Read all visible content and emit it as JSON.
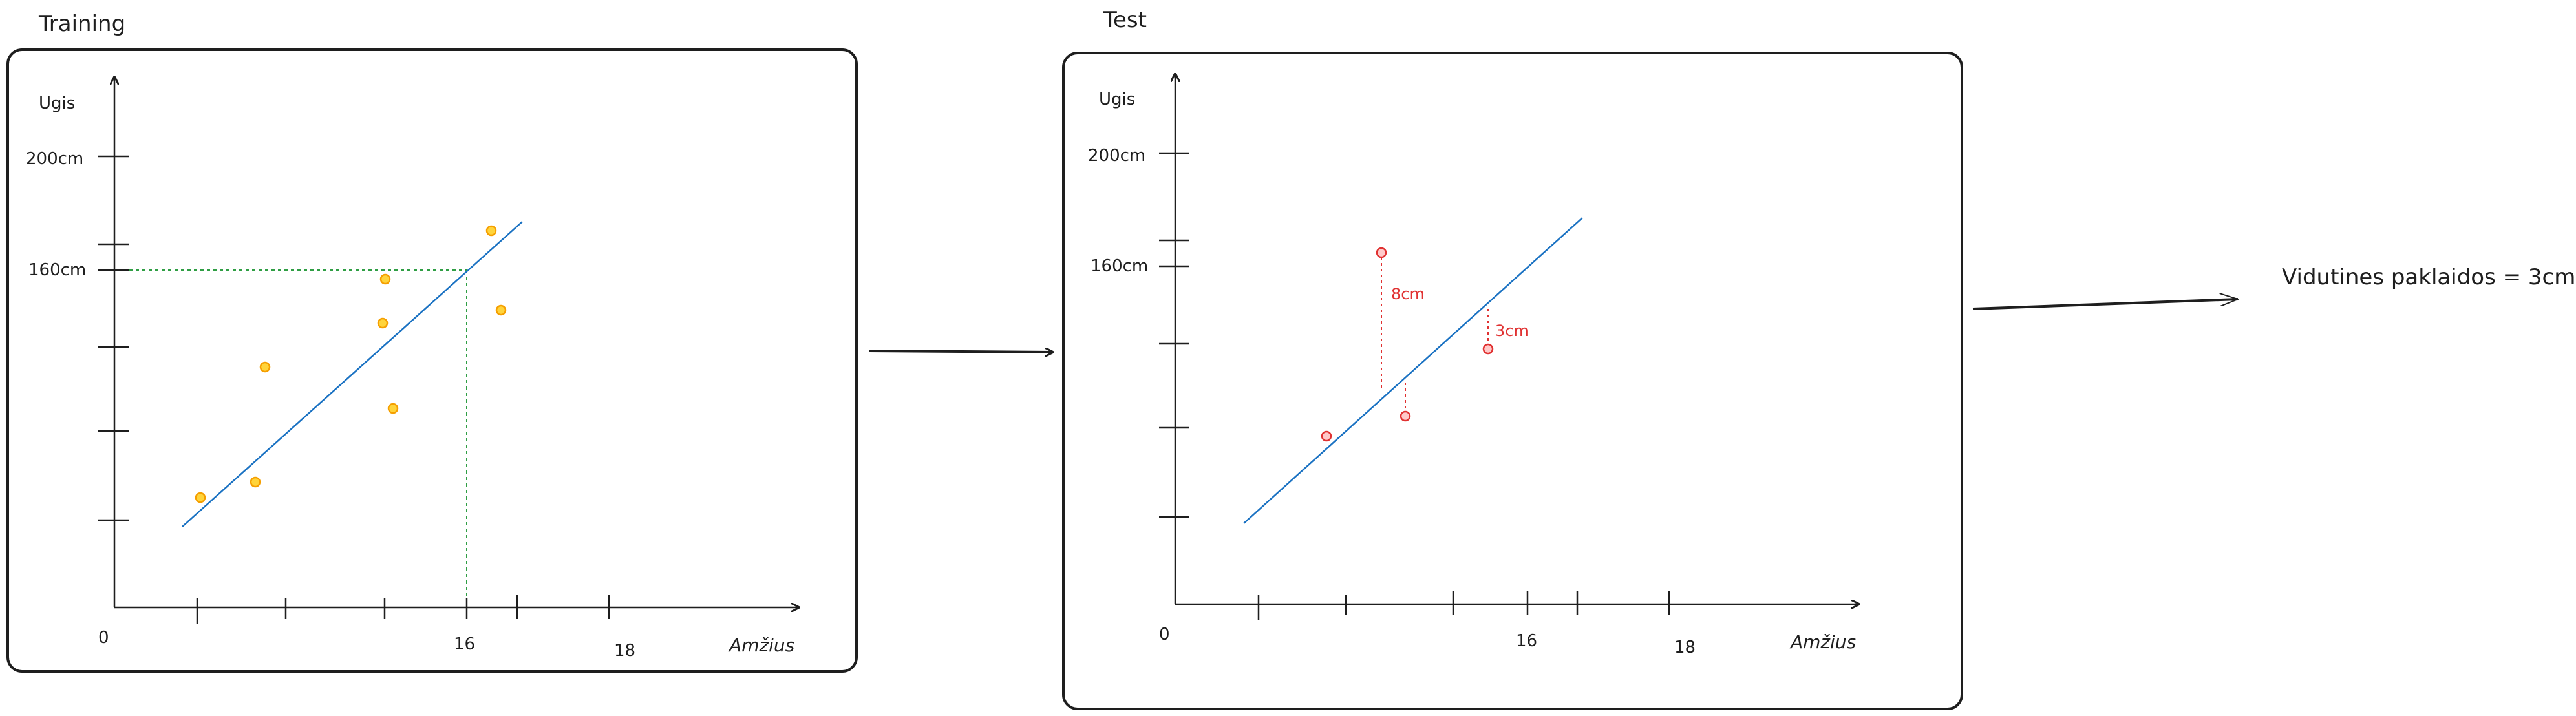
{
  "diagram": {
    "panels": [
      {
        "id": "training",
        "title": "Training",
        "y_axis_label": "Ugis",
        "x_axis_label": "Amžius",
        "y_tick_labels": [
          "200cm",
          "160cm"
        ],
        "x_tick_labels": [
          "0",
          "16",
          "18"
        ],
        "point_color": "#f59f00",
        "line_color": "#1971c2",
        "guide_color": "#2f9e44"
      },
      {
        "id": "test",
        "title": "Test",
        "y_axis_label": "Ugis",
        "x_axis_label": "Amžius",
        "y_tick_labels": [
          "200cm",
          "160cm"
        ],
        "x_tick_labels": [
          "0",
          "16",
          "18"
        ],
        "point_color": "#e03131",
        "line_color": "#1971c2",
        "error_labels": [
          "8cm",
          "3cm"
        ]
      }
    ],
    "result_text": "Vidutines paklaidos = 3cm"
  }
}
